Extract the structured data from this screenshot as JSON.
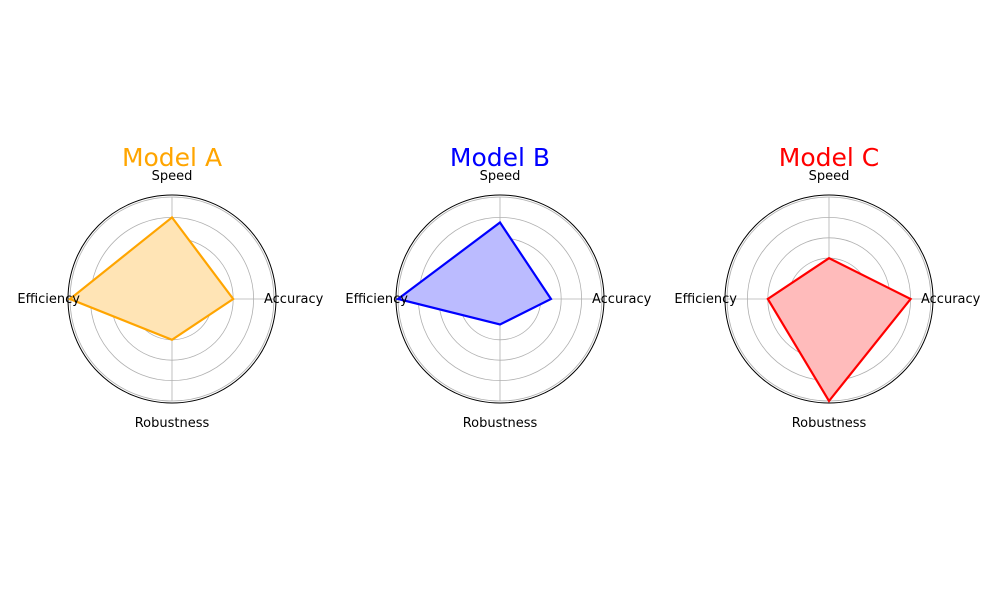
{
  "chart_data": [
    {
      "type": "radar",
      "title": "Model A",
      "color": "#FFA500",
      "fill": "#FFE4B5",
      "axes": [
        "Accuracy",
        "Speed",
        "Efficiency",
        "Robustness"
      ],
      "values": [
        0.6,
        0.8,
        1.0,
        0.4
      ],
      "rlim": [
        0,
        1
      ],
      "grid": true
    },
    {
      "type": "radar",
      "title": "Model B",
      "color": "#0000FF",
      "fill": "#BBBBFF",
      "axes": [
        "Accuracy",
        "Speed",
        "Efficiency",
        "Robustness"
      ],
      "values": [
        0.5,
        0.75,
        1.0,
        0.25
      ],
      "rlim": [
        0,
        1
      ],
      "grid": true
    },
    {
      "type": "radar",
      "title": "Model C",
      "color": "#FF0000",
      "fill": "#FFBBBB",
      "axes": [
        "Accuracy",
        "Speed",
        "Efficiency",
        "Robustness"
      ],
      "values": [
        0.8,
        0.4,
        0.6,
        1.0
      ],
      "rlim": [
        0,
        1
      ],
      "grid": true
    }
  ]
}
